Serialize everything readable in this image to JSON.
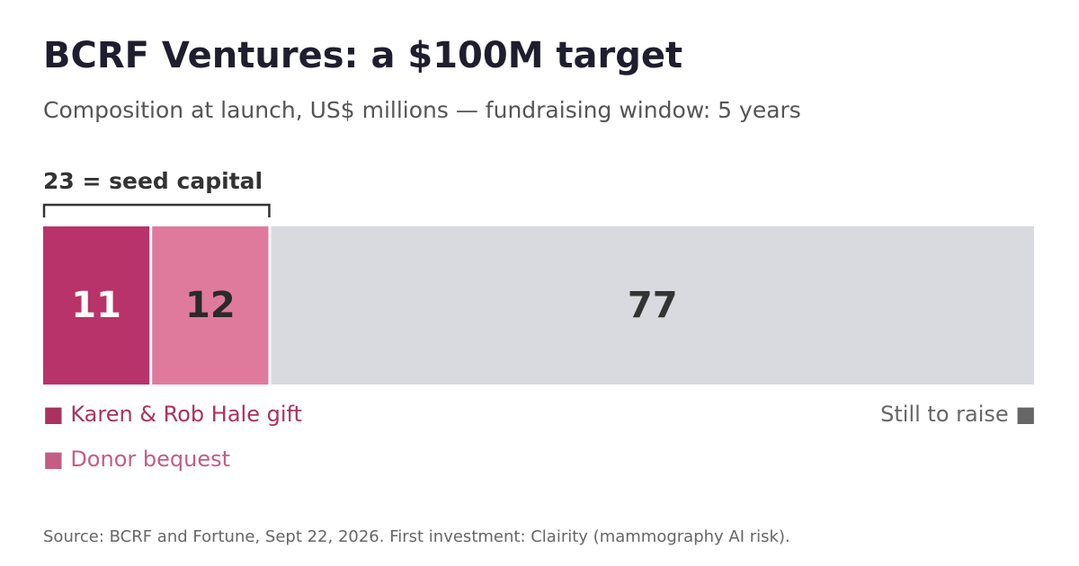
{
  "header": {
    "title": "BCRF Ventures: a $100M target",
    "subtitle": "Composition at launch, US$ millions — fundraising window: 5 years"
  },
  "annotation": {
    "seed_label": "23 = seed capital"
  },
  "legend": {
    "gift_marker": "■",
    "gift_label": "Karen & Rob Hale gift",
    "bequest_marker": "■",
    "bequest_label": "Donor bequest",
    "remaining_label": "Still to raise",
    "remaining_marker": "■"
  },
  "footer": {
    "source": "Source: BCRF and Fortune, Sept 22, 2026. First investment: Clairity (mammography AI risk)."
  },
  "colors": {
    "gift": "#b8336a",
    "bequest": "#e07a9c",
    "remaining": "#d9dadf",
    "gift_legend_text": "#a8335f",
    "bequest_legend_text": "#c45c85",
    "remaining_legend_text": "#666666"
  },
  "chart_data": {
    "type": "bar",
    "orientation": "horizontal-stacked",
    "total": 100,
    "unit": "US$ millions",
    "segments": [
      {
        "name": "Karen & Rob Hale gift",
        "value": 11,
        "label": "11",
        "color": "#b8336a",
        "label_color": "#ffffff"
      },
      {
        "name": "Donor bequest",
        "value": 12,
        "label": "12",
        "color": "#e07a9c",
        "label_color": "#2a2a2a"
      },
      {
        "name": "Still to raise",
        "value": 77,
        "label": "77",
        "color": "#d9dadf",
        "label_color": "#333333"
      }
    ],
    "bracket": {
      "spans_segments": [
        0,
        1
      ],
      "label": "23 = seed capital"
    }
  }
}
